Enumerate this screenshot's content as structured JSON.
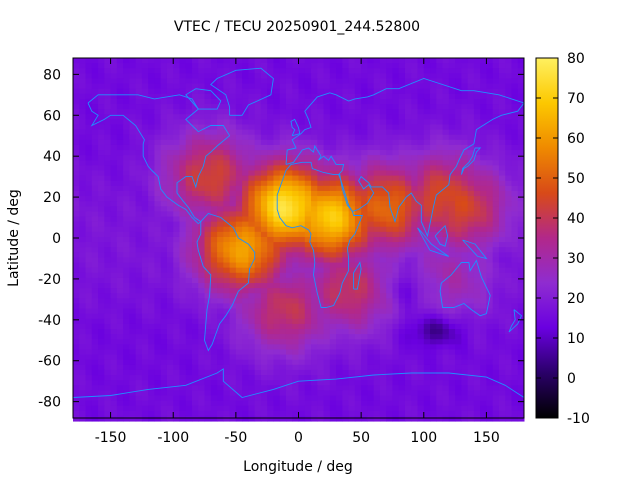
{
  "chart_data": {
    "type": "heatmap",
    "title": "VTEC / TECU 20250901_244.52800",
    "xlabel": "Longitude / deg",
    "ylabel": "Latitude / deg",
    "xlim": [
      -180,
      180
    ],
    "ylim": [
      -88,
      88
    ],
    "xticks": [
      -150,
      -100,
      -50,
      0,
      50,
      100,
      150
    ],
    "yticks": [
      -80,
      -60,
      -40,
      -20,
      0,
      20,
      40,
      60,
      80
    ],
    "colorbar": {
      "range": [
        -10,
        80
      ],
      "ticks": [
        80,
        70,
        60,
        50,
        40,
        30,
        20,
        10,
        0,
        -10
      ],
      "palette": [
        "#000000",
        "#2a0068",
        "#6a00e0",
        "#8f2cd0",
        "#b2288a",
        "#d84a18",
        "#ef8a00",
        "#fcc800",
        "#fff060"
      ]
    },
    "tec_peaks": [
      {
        "lon": -10,
        "lat": 15,
        "vtec": 76
      },
      {
        "lon": 25,
        "lat": 10,
        "vtec": 70
      },
      {
        "lon": -45,
        "lat": -5,
        "vtec": 62
      },
      {
        "lon": 70,
        "lat": 15,
        "vtec": 52
      },
      {
        "lon": 115,
        "lat": 20,
        "vtec": 46
      },
      {
        "lon": 130,
        "lat": 15,
        "vtec": 45
      },
      {
        "lon": -70,
        "lat": 30,
        "vtec": 44
      },
      {
        "lon": -10,
        "lat": -35,
        "vtec": 40
      },
      {
        "lon": 40,
        "lat": -25,
        "vtec": 40
      },
      {
        "lon": 120,
        "lat": -20,
        "vtec": 30
      }
    ],
    "background_vtec": 15,
    "low_regions": [
      {
        "lon": 110,
        "lat": -45,
        "vtec": 2
      },
      {
        "lon": 90,
        "lat": -25,
        "vtec": 8
      }
    ],
    "coastline_color": "#1e90ff"
  }
}
